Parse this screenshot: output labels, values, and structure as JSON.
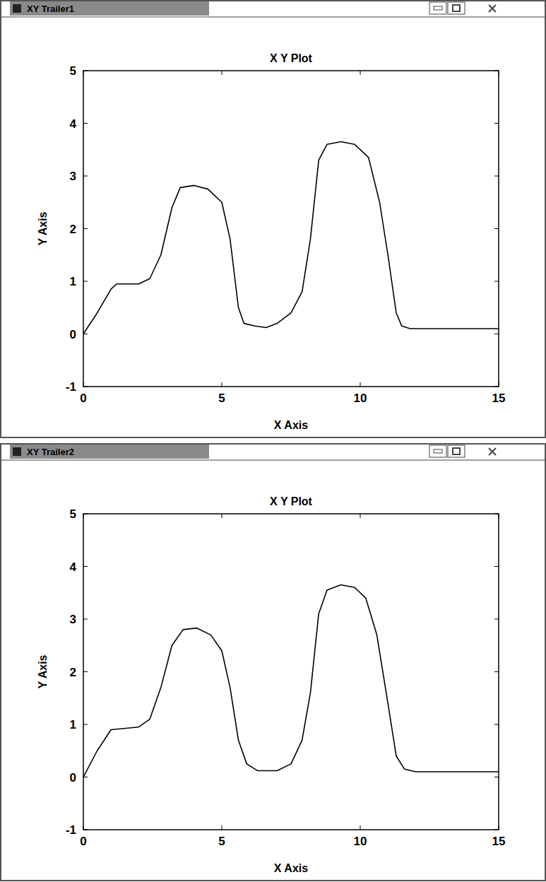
{
  "chart_data": [
    {
      "type": "line",
      "window_title": "XY Trailer1",
      "title": "X Y Plot",
      "x_label": "X Axis",
      "y_label": "Y Axis",
      "color": "#000000",
      "grid": false,
      "xlim": [
        0,
        15
      ],
      "xticks": [
        0,
        5,
        10,
        15
      ],
      "ylim": [
        -1,
        5
      ],
      "yticks": [
        -1,
        0,
        1,
        2,
        3,
        4,
        5
      ],
      "x": [
        0,
        0.5,
        1,
        1.2,
        2,
        2.4,
        2.8,
        3.2,
        3.5,
        4,
        4.5,
        5,
        5.3,
        5.6,
        5.8,
        6.2,
        6.6,
        7,
        7.5,
        7.9,
        8.2,
        8.5,
        8.8,
        9.3,
        9.8,
        10.3,
        10.7,
        11,
        11.3,
        11.5,
        11.8,
        15
      ],
      "values": [
        0,
        0.4,
        0.85,
        0.95,
        0.95,
        1.05,
        1.5,
        2.4,
        2.78,
        2.82,
        2.75,
        2.5,
        1.8,
        0.5,
        0.2,
        0.15,
        0.12,
        0.2,
        0.4,
        0.8,
        1.8,
        3.3,
        3.6,
        3.65,
        3.6,
        3.35,
        2.5,
        1.5,
        0.4,
        0.15,
        0.1,
        0.1
      ]
    },
    {
      "type": "line",
      "window_title": "XY Trailer2",
      "title": "X Y Plot",
      "x_label": "X Axis",
      "y_label": "Y Axis",
      "color": "#000000",
      "grid": false,
      "xlim": [
        0,
        15
      ],
      "xticks": [
        0,
        5,
        10,
        15
      ],
      "ylim": [
        -1,
        5
      ],
      "yticks": [
        -1,
        0,
        1,
        2,
        3,
        4,
        5
      ],
      "x": [
        0,
        0.5,
        1,
        2,
        2.4,
        2.8,
        3.2,
        3.6,
        4.1,
        4.6,
        5,
        5.3,
        5.6,
        5.9,
        6.3,
        7,
        7.5,
        7.9,
        8.2,
        8.5,
        8.8,
        9.3,
        9.8,
        10.2,
        10.6,
        11,
        11.3,
        11.6,
        12,
        15
      ],
      "values": [
        0,
        0.5,
        0.9,
        0.95,
        1.1,
        1.7,
        2.5,
        2.8,
        2.83,
        2.7,
        2.4,
        1.7,
        0.7,
        0.25,
        0.12,
        0.12,
        0.25,
        0.7,
        1.6,
        3.1,
        3.55,
        3.65,
        3.6,
        3.4,
        2.7,
        1.4,
        0.4,
        0.15,
        0.1,
        0.1
      ]
    }
  ]
}
